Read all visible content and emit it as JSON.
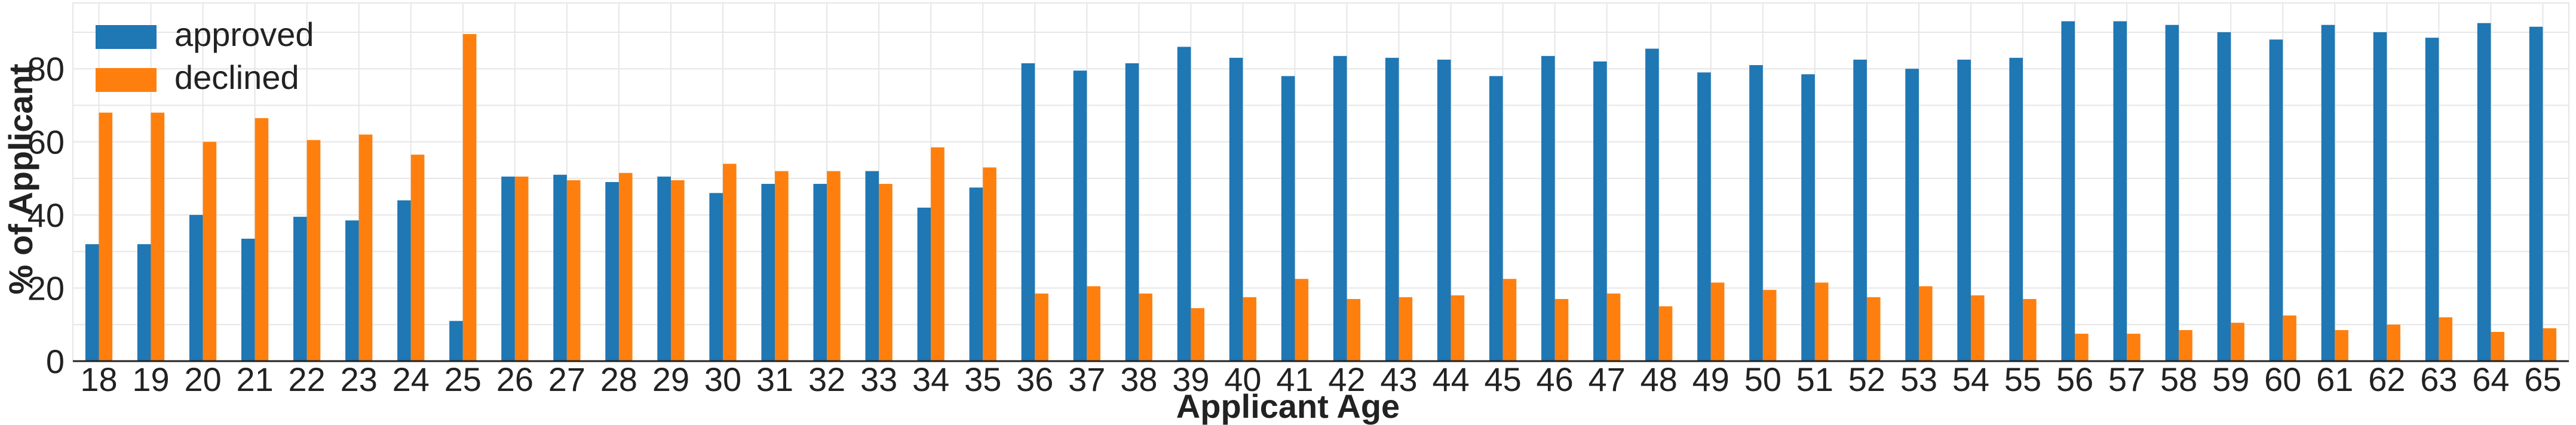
{
  "chart_data": {
    "type": "bar",
    "title": "",
    "xlabel": "Applicant Age",
    "ylabel": "% of Applicant",
    "ylim": [
      0,
      98
    ],
    "yticks": [
      0,
      20,
      40,
      60,
      80
    ],
    "grid": true,
    "legend_position": "top-left",
    "categories": [
      "18",
      "19",
      "20",
      "21",
      "22",
      "23",
      "24",
      "25",
      "26",
      "27",
      "28",
      "29",
      "30",
      "31",
      "32",
      "33",
      "34",
      "35",
      "36",
      "37",
      "38",
      "39",
      "40",
      "41",
      "42",
      "43",
      "44",
      "45",
      "46",
      "47",
      "48",
      "49",
      "50",
      "51",
      "52",
      "53",
      "54",
      "55",
      "56",
      "57",
      "58",
      "59",
      "60",
      "61",
      "62",
      "63",
      "64",
      "65"
    ],
    "series": [
      {
        "name": "approved",
        "color": "#1f77b4",
        "values": [
          32,
          32,
          40,
          33.5,
          39.5,
          38.5,
          44,
          11,
          50.5,
          51,
          49,
          50.5,
          46,
          48.5,
          48.5,
          52,
          42,
          47.5,
          81.5,
          79.5,
          81.5,
          86,
          83,
          78,
          83.5,
          83,
          82.5,
          78,
          83.5,
          82,
          85.5,
          79,
          81,
          78.5,
          82.5,
          80,
          82.5,
          83,
          93,
          93,
          92,
          90,
          88,
          92,
          90,
          88.5,
          92.5,
          91.5
        ]
      },
      {
        "name": "declined",
        "color": "#ff7f0e",
        "values": [
          68,
          68,
          60,
          66.5,
          60.5,
          62,
          56.5,
          89.5,
          50.5,
          49.5,
          51.5,
          49.5,
          54,
          52,
          52,
          48.5,
          58.5,
          53,
          18.5,
          20.5,
          18.5,
          14.5,
          17.5,
          22.5,
          17,
          17.5,
          18,
          22.5,
          17,
          18.5,
          15,
          21.5,
          19.5,
          21.5,
          17.5,
          20.5,
          18,
          17,
          7.5,
          7.5,
          8.5,
          10.5,
          12.5,
          8.5,
          10,
          12,
          8,
          9
        ]
      }
    ]
  }
}
